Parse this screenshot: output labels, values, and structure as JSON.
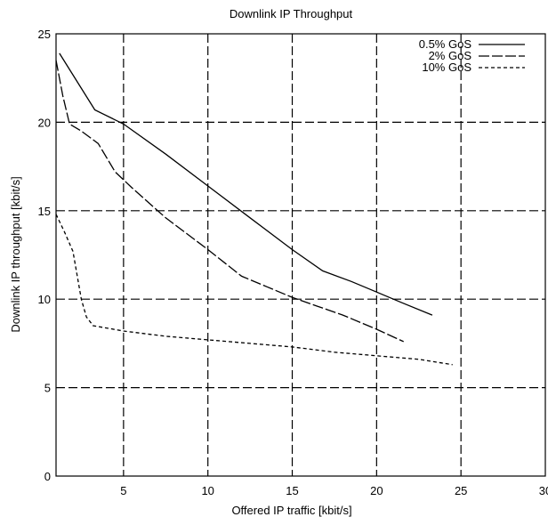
{
  "chart_data": {
    "type": "line",
    "title": "Downlink IP Throughput",
    "xlabel": "Offered IP traffic [kbit/s]",
    "ylabel": "Downlink IP throughput [kbit/s]",
    "xlim": [
      1,
      30
    ],
    "ylim": [
      0,
      25
    ],
    "xticks": [
      "5",
      "10",
      "15",
      "20",
      "25",
      "30"
    ],
    "yticks": [
      "0",
      "5",
      "10",
      "15",
      "20",
      "25"
    ],
    "grid": true,
    "legend_position": "top-right",
    "series": [
      {
        "name": "0.5% GoS",
        "dash": "solid",
        "x": [
          1.2,
          3.3,
          5.0,
          7.5,
          10.0,
          12.5,
          15.0,
          16.8,
          18.5,
          20.0,
          21.5,
          23.3
        ],
        "y": [
          23.9,
          20.7,
          19.9,
          18.2,
          16.4,
          14.6,
          12.8,
          11.6,
          11.0,
          10.4,
          9.8,
          9.1
        ]
      },
      {
        "name": "2% GoS",
        "dash": "long-dash",
        "x": [
          1.0,
          1.4,
          1.8,
          2.5,
          3.5,
          4.5,
          5.5,
          7.5,
          10.0,
          12.0,
          13.5,
          15.0,
          16.5,
          18.0,
          20.0,
          21.6
        ],
        "y": [
          23.5,
          21.5,
          19.9,
          19.5,
          18.8,
          17.2,
          16.3,
          14.6,
          12.8,
          11.3,
          10.7,
          10.1,
          9.6,
          9.1,
          8.3,
          7.6
        ]
      },
      {
        "name": "10% GoS",
        "dash": "short-dash",
        "x": [
          1.0,
          1.5,
          2.0,
          2.5,
          2.8,
          3.2,
          5.0,
          7.5,
          10.0,
          12.5,
          15.0,
          17.5,
          20.0,
          22.5,
          24.5
        ],
        "y": [
          14.8,
          13.8,
          12.7,
          10.0,
          9.0,
          8.5,
          8.2,
          7.9,
          7.7,
          7.5,
          7.3,
          7.0,
          6.8,
          6.6,
          6.3
        ]
      }
    ]
  }
}
